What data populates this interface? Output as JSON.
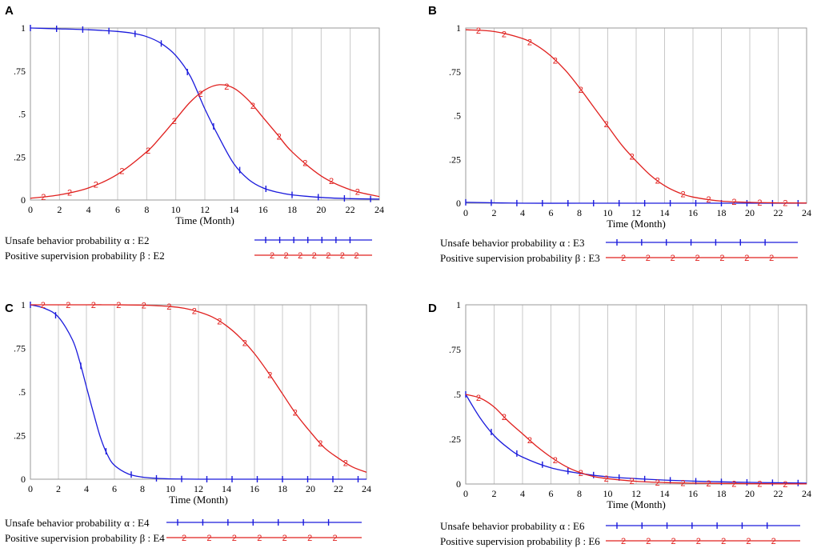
{
  "colors": {
    "alpha": "#1a1adc",
    "beta": "#e0201e"
  },
  "chart_data": [
    {
      "panel": "A",
      "type": "line",
      "xlabel": "Time (Month)",
      "xlim": [
        0,
        24
      ],
      "ylim": [
        0,
        1
      ],
      "xticks": [
        "0",
        "2",
        "4",
        "6",
        "8",
        "10",
        "12",
        "14",
        "16",
        "18",
        "20",
        "22",
        "24"
      ],
      "yticks": [
        "0",
        ".25",
        ".5",
        ".75",
        "1"
      ],
      "series": [
        {
          "name": "Unsafe behavior probability α : E2",
          "marker": "1",
          "x": [
            0,
            2,
            4,
            6,
            7,
            8,
            9,
            10,
            11,
            12,
            13,
            14,
            15,
            16,
            17,
            18,
            20,
            22,
            24
          ],
          "values": [
            1.0,
            0.995,
            0.99,
            0.98,
            0.97,
            0.95,
            0.91,
            0.84,
            0.72,
            0.53,
            0.36,
            0.21,
            0.12,
            0.07,
            0.045,
            0.03,
            0.015,
            0.008,
            0.005
          ]
        },
        {
          "name": "Positive supervision probability β : E2",
          "marker": "2",
          "x": [
            0,
            2,
            4,
            6,
            8,
            9,
            10,
            11,
            12,
            13,
            14,
            15,
            16,
            17,
            18,
            20,
            22,
            24
          ],
          "values": [
            0.01,
            0.03,
            0.07,
            0.15,
            0.28,
            0.37,
            0.47,
            0.57,
            0.64,
            0.67,
            0.65,
            0.58,
            0.48,
            0.38,
            0.28,
            0.14,
            0.06,
            0.02
          ]
        }
      ]
    },
    {
      "panel": "B",
      "type": "line",
      "xlabel": "Time (Month)",
      "xlim": [
        0,
        24
      ],
      "ylim": [
        0,
        1
      ],
      "xticks": [
        "0",
        "2",
        "4",
        "6",
        "8",
        "10",
        "12",
        "14",
        "16",
        "18",
        "20",
        "22",
        "24"
      ],
      "yticks": [
        "0",
        ".25",
        ".5",
        ".75",
        "1"
      ],
      "series": [
        {
          "name": "Unsafe behavior probability α : E3",
          "marker": "1",
          "x": [
            0,
            4,
            8,
            12,
            16,
            20,
            24
          ],
          "values": [
            0.005,
            0.0,
            0.0,
            0.0,
            0.0,
            0.0,
            0.0
          ]
        },
        {
          "name": "Positive supervision probability β : E3",
          "marker": "2",
          "x": [
            0,
            2,
            4,
            5,
            6,
            7,
            8,
            9,
            10,
            11,
            12,
            13,
            14,
            15,
            16,
            18,
            20,
            22,
            24
          ],
          "values": [
            0.99,
            0.98,
            0.94,
            0.9,
            0.84,
            0.76,
            0.66,
            0.55,
            0.44,
            0.33,
            0.24,
            0.16,
            0.1,
            0.06,
            0.035,
            0.012,
            0.005,
            0.002,
            0.001
          ]
        }
      ]
    },
    {
      "panel": "C",
      "type": "line",
      "xlabel": "Time (Month)",
      "xlim": [
        0,
        24
      ],
      "ylim": [
        0,
        1
      ],
      "xticks": [
        "0",
        "2",
        "4",
        "6",
        "8",
        "10",
        "12",
        "14",
        "16",
        "18",
        "20",
        "22",
        "24"
      ],
      "yticks": [
        "0",
        ".25",
        ".5",
        ".75",
        "1"
      ],
      "series": [
        {
          "name": "Unsafe behavior probability α : E4",
          "marker": "1",
          "x": [
            0,
            1,
            2,
            3,
            3.5,
            4,
            4.5,
            5,
            5.5,
            6,
            7,
            8,
            9,
            10,
            12,
            16,
            20,
            24
          ],
          "values": [
            1.0,
            0.98,
            0.93,
            0.8,
            0.68,
            0.53,
            0.38,
            0.24,
            0.14,
            0.08,
            0.03,
            0.012,
            0.005,
            0.002,
            0.0,
            0.0,
            0.0,
            0.0
          ]
        },
        {
          "name": "Positive supervision probability β : E4",
          "marker": "2",
          "x": [
            0,
            2,
            4,
            6,
            8,
            10,
            11,
            12,
            13,
            14,
            15,
            16,
            17,
            18,
            19,
            20,
            21,
            22,
            23,
            24
          ],
          "values": [
            1.0,
            1.0,
            1.0,
            1.0,
            0.998,
            0.99,
            0.98,
            0.96,
            0.93,
            0.88,
            0.81,
            0.72,
            0.61,
            0.49,
            0.37,
            0.27,
            0.18,
            0.12,
            0.07,
            0.04
          ]
        }
      ]
    },
    {
      "panel": "D",
      "type": "line",
      "xlabel": "Time (Month)",
      "xlim": [
        0,
        24
      ],
      "ylim": [
        0,
        1
      ],
      "xticks": [
        "0",
        "2",
        "4",
        "6",
        "8",
        "10",
        "12",
        "14",
        "16",
        "18",
        "20",
        "22",
        "24"
      ],
      "yticks": [
        "0",
        ".25",
        ".5",
        ".75",
        "1"
      ],
      "series": [
        {
          "name": "Unsafe behavior probability α : E6",
          "marker": "1",
          "x": [
            0,
            1,
            2,
            3,
            4,
            6,
            8,
            10,
            12,
            14,
            16,
            18,
            20,
            22,
            24
          ],
          "values": [
            0.5,
            0.37,
            0.27,
            0.2,
            0.15,
            0.09,
            0.06,
            0.04,
            0.03,
            0.022,
            0.016,
            0.012,
            0.009,
            0.007,
            0.005
          ]
        },
        {
          "name": "Positive supervision probability β : E6",
          "marker": "2",
          "x": [
            0,
            1,
            2,
            3,
            4,
            5,
            6,
            7,
            8,
            9,
            10,
            12,
            14,
            16,
            18,
            20,
            22,
            24
          ],
          "values": [
            0.5,
            0.48,
            0.43,
            0.35,
            0.28,
            0.21,
            0.15,
            0.1,
            0.065,
            0.042,
            0.03,
            0.015,
            0.008,
            0.005,
            0.003,
            0.002,
            0.001,
            0.001
          ]
        }
      ]
    }
  ]
}
